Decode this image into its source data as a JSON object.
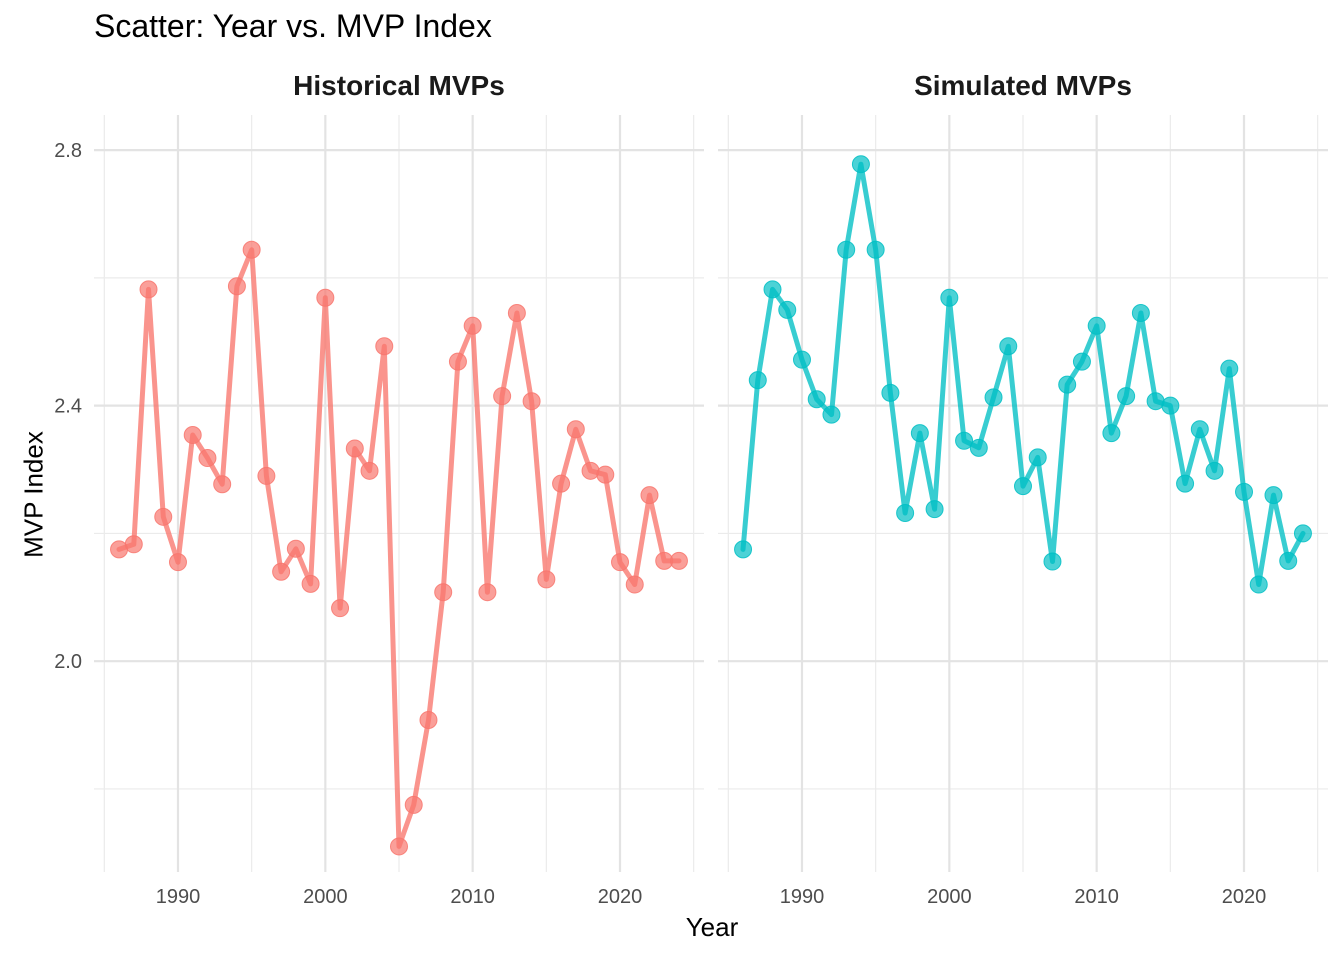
{
  "title": "Scatter: Year vs. MVP Index",
  "chart_data": {
    "type": "line",
    "title": "Scatter: Year vs. MVP Index",
    "xlabel": "Year",
    "ylabel": "MVP Index",
    "xlim": [
      1984.3,
      2025.7
    ],
    "ylim": [
      1.67,
      2.855
    ],
    "x_ticks": [
      1990,
      2000,
      2010,
      2020
    ],
    "y_ticks": [
      2.0,
      2.4,
      2.8
    ],
    "grid": true,
    "legend": "none",
    "panels": [
      {
        "name": "Historical MVPs",
        "color": "#F8766D",
        "x": [
          1986,
          1987,
          1988,
          1989,
          1990,
          1991,
          1992,
          1993,
          1994,
          1995,
          1996,
          1997,
          1998,
          1999,
          2000,
          2001,
          2002,
          2003,
          2004,
          2005,
          2006,
          2007,
          2008,
          2009,
          2010,
          2011,
          2012,
          2013,
          2014,
          2015,
          2016,
          2017,
          2018,
          2019,
          2020,
          2021,
          2022,
          2023,
          2024
        ],
        "y": [
          2.175,
          2.183,
          2.582,
          2.226,
          2.155,
          2.354,
          2.318,
          2.277,
          2.587,
          2.644,
          2.29,
          2.14,
          2.176,
          2.121,
          2.569,
          2.083,
          2.333,
          2.298,
          2.493,
          1.71,
          1.775,
          1.908,
          2.108,
          2.469,
          2.525,
          2.108,
          2.415,
          2.545,
          2.407,
          2.128,
          2.278,
          2.363,
          2.298,
          2.292,
          2.155,
          2.12,
          2.26,
          2.157,
          2.157
        ]
      },
      {
        "name": "Simulated MVPs",
        "color": "#00BFC4",
        "x": [
          1986,
          1987,
          1988,
          1989,
          1990,
          1991,
          1992,
          1993,
          1994,
          1995,
          1996,
          1997,
          1998,
          1999,
          2000,
          2001,
          2002,
          2003,
          2004,
          2005,
          2006,
          2007,
          2008,
          2009,
          2010,
          2011,
          2012,
          2013,
          2014,
          2015,
          2016,
          2017,
          2018,
          2019,
          2020,
          2021,
          2022,
          2023,
          2024
        ],
        "y": [
          2.175,
          2.44,
          2.582,
          2.55,
          2.472,
          2.41,
          2.386,
          2.644,
          2.778,
          2.644,
          2.42,
          2.232,
          2.357,
          2.238,
          2.569,
          2.345,
          2.334,
          2.413,
          2.493,
          2.274,
          2.319,
          2.156,
          2.433,
          2.469,
          2.525,
          2.357,
          2.415,
          2.545,
          2.407,
          2.4,
          2.278,
          2.363,
          2.298,
          2.458,
          2.265,
          2.12,
          2.26,
          2.157,
          2.2
        ]
      }
    ]
  }
}
